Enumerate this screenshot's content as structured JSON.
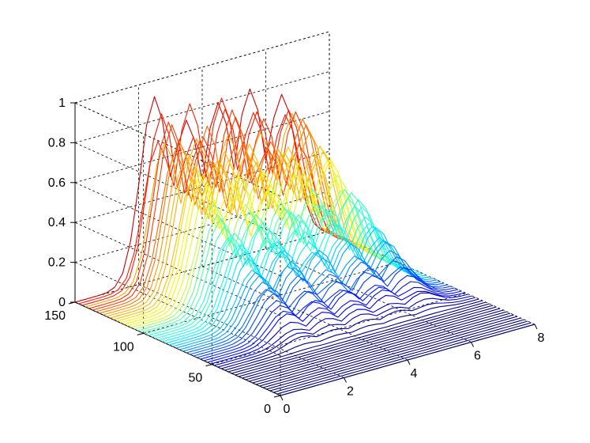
{
  "chart_data": {
    "type": "surface-mesh",
    "title": "",
    "xlabel": "",
    "ylabel": "",
    "zlabel": "",
    "grid": true,
    "colormap": "jet",
    "x_axis": {
      "range": [
        0,
        8
      ],
      "ticks": [
        "0",
        "2",
        "4",
        "6",
        "8"
      ]
    },
    "y_axis": {
      "range": [
        0,
        150
      ],
      "ticks": [
        "0",
        "50",
        "100",
        "150"
      ]
    },
    "z_axis": {
      "range": [
        0,
        1
      ],
      "ticks": [
        "0",
        "0.2",
        "0.4",
        "0.6",
        "0.8",
        "1"
      ]
    },
    "x": [
      0,
      1,
      2,
      3,
      4,
      5,
      6,
      7,
      8
    ],
    "y_samples": 60,
    "description_of_surface": "near-zero plane with a ridge of peaks along x between ~2 and ~7, peak heights up to ~1.0 near the back (high y)",
    "series": [
      {
        "y_range": [
          0,
          150
        ],
        "peak_x": [
          2.5,
          3.5,
          4.5,
          5.5,
          6.5
        ],
        "peak_z_max": [
          0.95,
          0.92,
          0.88,
          0.85,
          0.8
        ]
      }
    ]
  }
}
